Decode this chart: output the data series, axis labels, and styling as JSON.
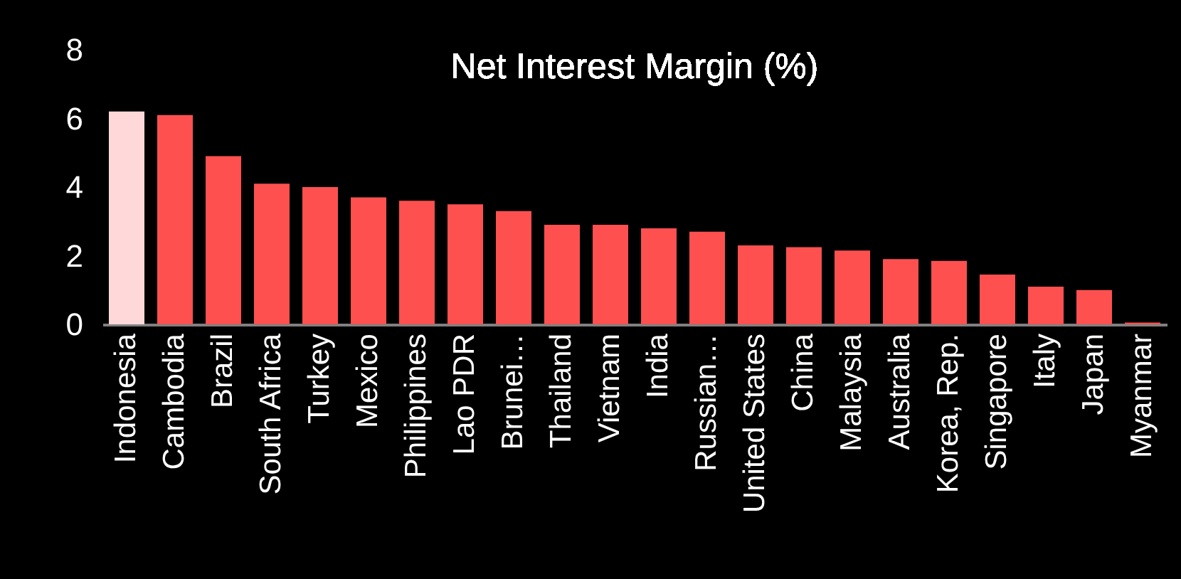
{
  "chart_data": {
    "type": "bar",
    "title": "Net Interest Margin (%)",
    "categories": [
      "Indonesia",
      "Cambodia",
      "Brazil",
      "South Africa",
      "Turkey",
      "Mexico",
      "Philippines",
      "Lao PDR",
      "Brunei…",
      "Thailand",
      "Vietnam",
      "India",
      "Russian…",
      "United States",
      "China",
      "Malaysia",
      "Australia",
      "Korea, Rep.",
      "Singapore",
      "Italy",
      "Japan",
      "Myanmar"
    ],
    "values": [
      6.2,
      6.1,
      4.9,
      4.1,
      4.0,
      3.7,
      3.6,
      3.5,
      3.3,
      2.9,
      2.9,
      2.8,
      2.7,
      2.3,
      2.25,
      2.15,
      1.9,
      1.85,
      1.45,
      1.1,
      1.0,
      0.05
    ],
    "colors": [
      "#ffd9d9",
      "#ff5050",
      "#ff5050",
      "#ff5050",
      "#ff5050",
      "#ff5050",
      "#ff5050",
      "#ff5050",
      "#ff5050",
      "#ff5050",
      "#ff5050",
      "#ff5050",
      "#ff5050",
      "#ff5050",
      "#ff5050",
      "#ff5050",
      "#ff5050",
      "#ff5050",
      "#ff5050",
      "#ff5050",
      "#ff5050",
      "#ff5050"
    ],
    "ylim": [
      0,
      8
    ],
    "yticks": [
      0,
      2,
      4,
      6,
      8
    ],
    "grid": false
  }
}
